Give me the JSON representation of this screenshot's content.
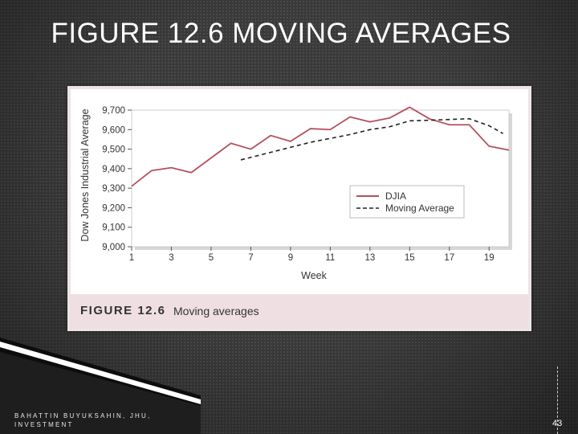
{
  "slide": {
    "title": "FIGURE 12.6 MOVING AVERAGES",
    "footer_line1": "BAHATTIN BUYUKSAHIN, JHU,",
    "footer_line2": "INVESTMENT",
    "page_number": "43"
  },
  "figure": {
    "caption_number": "FIGURE 12.6",
    "caption_text": "Moving averages"
  },
  "colors": {
    "djia": "#b5505c",
    "moving_average": "#222222",
    "caption_bg": "#f0dfe2"
  },
  "chart_data": {
    "type": "line",
    "xlabel": "Week",
    "ylabel": "Dow Jones Industrial Average",
    "xlim": [
      1,
      20
    ],
    "ylim": [
      9000,
      9700
    ],
    "x_ticks": [
      1,
      3,
      5,
      7,
      9,
      11,
      13,
      15,
      17,
      19
    ],
    "y_ticks": [
      9000,
      9100,
      9200,
      9300,
      9400,
      9500,
      9600,
      9700
    ],
    "y_tick_labels": [
      "9,000",
      "9,100",
      "9,200",
      "9,300",
      "9,400",
      "9,500",
      "9,600",
      "9,700"
    ],
    "grid": false,
    "legend_position": "right",
    "series": [
      {
        "name": "DJIA",
        "style": "solid",
        "x": [
          1,
          2,
          3,
          4,
          5,
          6,
          7,
          8,
          9,
          10,
          11,
          12,
          13,
          14,
          15,
          16,
          17,
          18,
          19,
          20
        ],
        "values": [
          9310,
          9390,
          9405,
          9380,
          9455,
          9530,
          9500,
          9570,
          9540,
          9605,
          9600,
          9665,
          9640,
          9660,
          9715,
          9655,
          9625,
          9625,
          9515,
          9495
        ]
      },
      {
        "name": "Moving Average",
        "style": "dashed",
        "x": [
          6.5,
          10,
          12,
          13,
          14,
          15,
          16,
          17,
          18,
          19,
          19.7
        ],
        "values": [
          9445,
          9535,
          9575,
          9600,
          9615,
          9645,
          9648,
          9652,
          9656,
          9620,
          9580
        ]
      }
    ]
  }
}
